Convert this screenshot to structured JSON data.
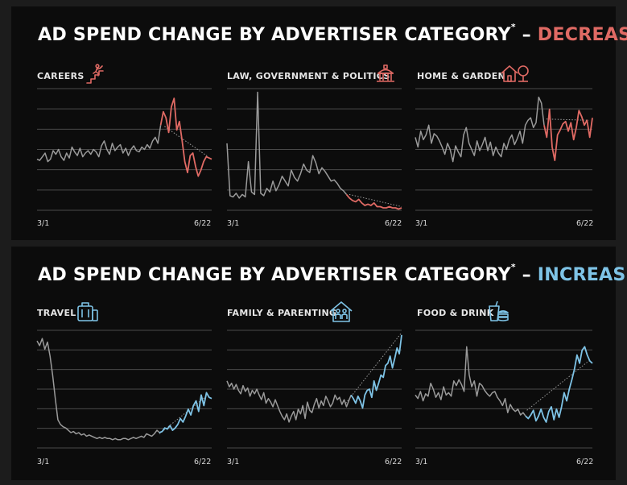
{
  "sections": [
    {
      "headline_prefix": "AD SPEND CHANGE BY ADVERTISER CATEGORY",
      "headline_sup": "*",
      "headline_sep": " – ",
      "headline_keyword": "DECREASES",
      "accent_color": "#e06a64"
    },
    {
      "headline_prefix": "AD SPEND CHANGE BY ADVERTISER CATEGORY",
      "headline_sup": "*",
      "headline_sep": " – ",
      "headline_keyword": "INCREASES",
      "accent_color": "#7ec3e6"
    }
  ],
  "colors": {
    "base_line": "#9a9a9a",
    "grid": "#4a4a4a",
    "trend": "#9a9a9a"
  },
  "chart_data": [
    {
      "type": "line",
      "title": "CAREERS",
      "icon": "career-ladder-icon",
      "accent_color": "#e06a64",
      "x_start_label": "3/1",
      "x_end_label": "6/22",
      "ylim": [
        0,
        100
      ],
      "highlight_from": 0.71,
      "values": [
        42,
        41,
        44,
        47,
        40,
        42,
        49,
        46,
        50,
        44,
        41,
        47,
        43,
        52,
        48,
        45,
        51,
        44,
        47,
        49,
        46,
        50,
        48,
        44,
        53,
        57,
        50,
        46,
        55,
        49,
        52,
        54,
        47,
        51,
        45,
        50,
        53,
        49,
        48,
        52,
        50,
        54,
        51,
        57,
        60,
        55,
        70,
        81,
        76,
        64,
        85,
        92,
        66,
        73,
        57,
        40,
        31,
        45,
        47,
        36,
        28,
        33,
        40,
        44,
        43,
        42
      ],
      "trend": [
        [
          0.73,
          69
        ],
        [
          0.98,
          44
        ]
      ]
    },
    {
      "type": "line",
      "title": "LAW, GOVERNMENT & POLITICS",
      "icon": "government-building-icon",
      "accent_color": "#e06a64",
      "x_start_label": "3/1",
      "x_end_label": "6/22",
      "ylim": [
        0,
        100
      ],
      "highlight_from": 0.69,
      "values": [
        55,
        12,
        11,
        14,
        10,
        13,
        11,
        40,
        15,
        13,
        97,
        14,
        12,
        18,
        15,
        24,
        16,
        21,
        28,
        24,
        20,
        33,
        27,
        24,
        30,
        38,
        33,
        31,
        45,
        39,
        30,
        35,
        32,
        28,
        24,
        25,
        22,
        18,
        16,
        13,
        10,
        8,
        7,
        9,
        6,
        4,
        5,
        4,
        6,
        3,
        3,
        2,
        2,
        3,
        2,
        2,
        1,
        2
      ],
      "trend": [
        [
          0.7,
          13
        ],
        [
          1.0,
          3
        ]
      ]
    },
    {
      "type": "line",
      "title": "HOME & GARDEN",
      "icon": "house-tree-icon",
      "accent_color": "#e06a64",
      "x_start_label": "3/1",
      "x_end_label": "6/22",
      "ylim": [
        0,
        100
      ],
      "highlight_from": 0.72,
      "values": [
        60,
        52,
        65,
        58,
        62,
        70,
        55,
        63,
        61,
        57,
        52,
        46,
        55,
        50,
        40,
        53,
        48,
        44,
        62,
        68,
        55,
        50,
        45,
        57,
        49,
        54,
        60,
        49,
        56,
        45,
        52,
        47,
        44,
        55,
        50,
        58,
        62,
        54,
        59,
        65,
        55,
        70,
        74,
        76,
        68,
        72,
        93,
        88,
        70,
        60,
        83,
        52,
        41,
        62,
        66,
        71,
        73,
        65,
        72,
        58,
        68,
        82,
        77,
        70,
        74,
        60,
        76
      ],
      "trend": [
        [
          0.74,
          75
        ],
        [
          0.98,
          74
        ]
      ]
    },
    {
      "type": "line",
      "title": "TRAVEL",
      "icon": "luggage-icon",
      "accent_color": "#7ec3e6",
      "x_start_label": "3/1",
      "x_end_label": "6/22",
      "ylim": [
        0,
        100
      ],
      "highlight_from": 0.7,
      "values": [
        91,
        87,
        93,
        84,
        90,
        78,
        62,
        42,
        24,
        20,
        18,
        17,
        15,
        13,
        14,
        12,
        13,
        11,
        12,
        10,
        11,
        10,
        9,
        8,
        9,
        8,
        9,
        8,
        8,
        7,
        8,
        7,
        7,
        8,
        8,
        7,
        8,
        9,
        8,
        9,
        10,
        9,
        12,
        11,
        10,
        12,
        15,
        13,
        14,
        17,
        16,
        19,
        15,
        17,
        20,
        25,
        22,
        27,
        33,
        28,
        36,
        40,
        31,
        45,
        36,
        47,
        43,
        42
      ],
      "trend": [
        [
          0.7,
          12
        ],
        [
          0.97,
          44
        ]
      ]
    },
    {
      "type": "line",
      "title": "FAMILY & PARENTING",
      "icon": "family-home-icon",
      "accent_color": "#7ec3e6",
      "x_start_label": "3/1",
      "x_end_label": "6/22",
      "ylim": [
        0,
        100
      ],
      "highlight_from": 0.71,
      "values": [
        57,
        52,
        55,
        50,
        54,
        49,
        46,
        53,
        48,
        51,
        44,
        49,
        46,
        50,
        45,
        41,
        47,
        38,
        42,
        39,
        35,
        41,
        36,
        31,
        27,
        24,
        29,
        22,
        27,
        31,
        24,
        33,
        29,
        36,
        25,
        39,
        32,
        30,
        37,
        42,
        34,
        40,
        36,
        44,
        40,
        35,
        38,
        45,
        41,
        43,
        37,
        41,
        35,
        40,
        45,
        42,
        38,
        44,
        40,
        34,
        45,
        49,
        50,
        43,
        57,
        49,
        55,
        62,
        60,
        70,
        72,
        78,
        68,
        76,
        85,
        80,
        96
      ],
      "trend": [
        [
          0.68,
          38
        ],
        [
          1.0,
          98
        ]
      ]
    },
    {
      "type": "line",
      "title": "FOOD & DRINK",
      "icon": "food-drink-icon",
      "accent_color": "#7ec3e6",
      "x_start_label": "3/1",
      "x_end_label": "6/22",
      "ylim": [
        0,
        100
      ],
      "highlight_from": 0.62,
      "values": [
        45,
        42,
        48,
        40,
        46,
        44,
        55,
        50,
        43,
        47,
        41,
        52,
        45,
        47,
        44,
        57,
        53,
        58,
        54,
        48,
        86,
        62,
        52,
        57,
        44,
        55,
        53,
        49,
        46,
        44,
        47,
        48,
        43,
        40,
        36,
        42,
        30,
        37,
        33,
        31,
        33,
        28,
        30,
        27,
        25,
        28,
        32,
        23,
        27,
        33,
        26,
        22,
        31,
        35,
        24,
        33,
        26,
        35,
        47,
        40,
        50,
        58,
        67,
        79,
        72,
        83,
        86,
        79,
        74,
        72
      ],
      "trend": [
        [
          0.63,
          32
        ],
        [
          0.98,
          74
        ]
      ]
    }
  ]
}
